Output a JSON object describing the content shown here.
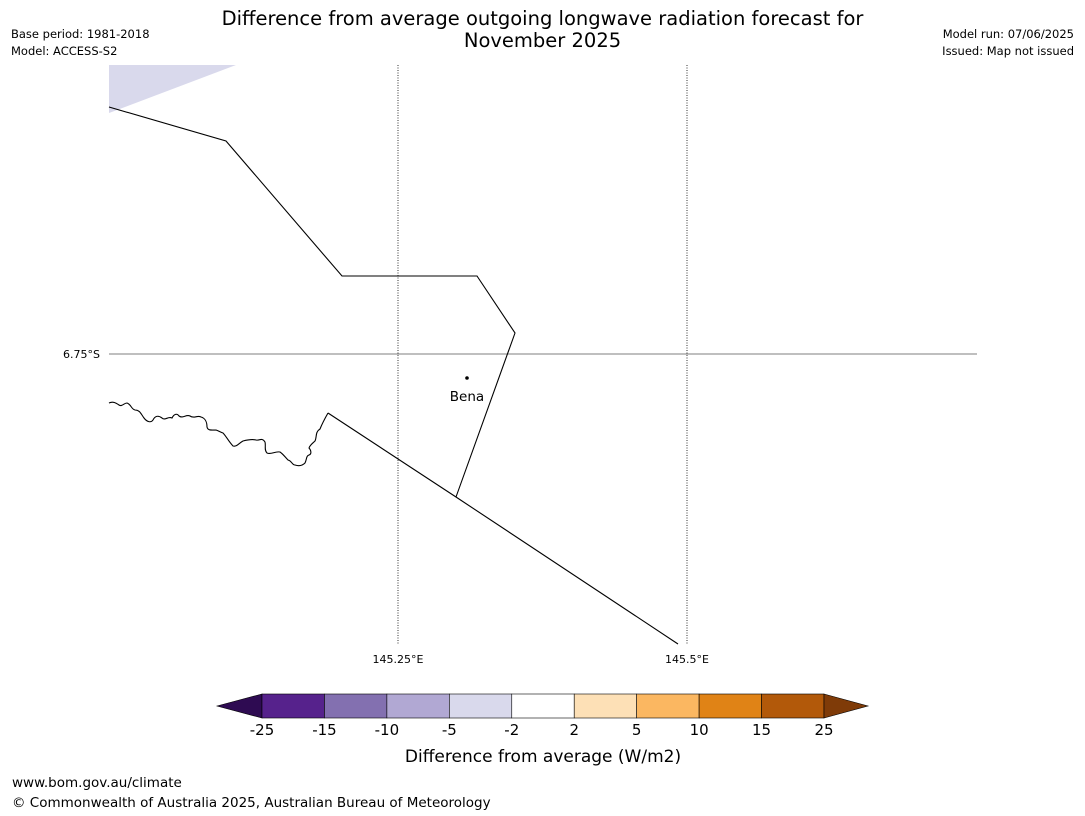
{
  "title_line1": "Difference from average outgoing longwave radiation forecast for",
  "title_line2": "November 2025",
  "meta_left": {
    "base_period": "Base period: 1981-2018",
    "model": "Model: ACCESS-S2"
  },
  "meta_right": {
    "model_run": "Model run: 07/06/2025",
    "issued": "Issued: Map not issued"
  },
  "map": {
    "lat_label": "6.75°S",
    "lon_labels": [
      "145.25°E",
      "145.5°E"
    ],
    "place": "Bena"
  },
  "colorbar": {
    "label": "Difference from average (W/m2)",
    "ticks": [
      "-25",
      "-15",
      "-10",
      "-5",
      "-2",
      "2",
      "5",
      "10",
      "15",
      "25"
    ],
    "colors": [
      "#56228c",
      "#8370b0",
      "#b1a8d3",
      "#d9d9ec",
      "#ffffff",
      "#fde0b6",
      "#fbb761",
      "#e08316",
      "#b2590a"
    ],
    "under_color": "#2e0b52",
    "over_color": "#7f3b08"
  },
  "footer": {
    "url": "www.bom.gov.au/climate",
    "copyright": "© Commonwealth of Australia 2025, Australian Bureau of Meteorology"
  }
}
